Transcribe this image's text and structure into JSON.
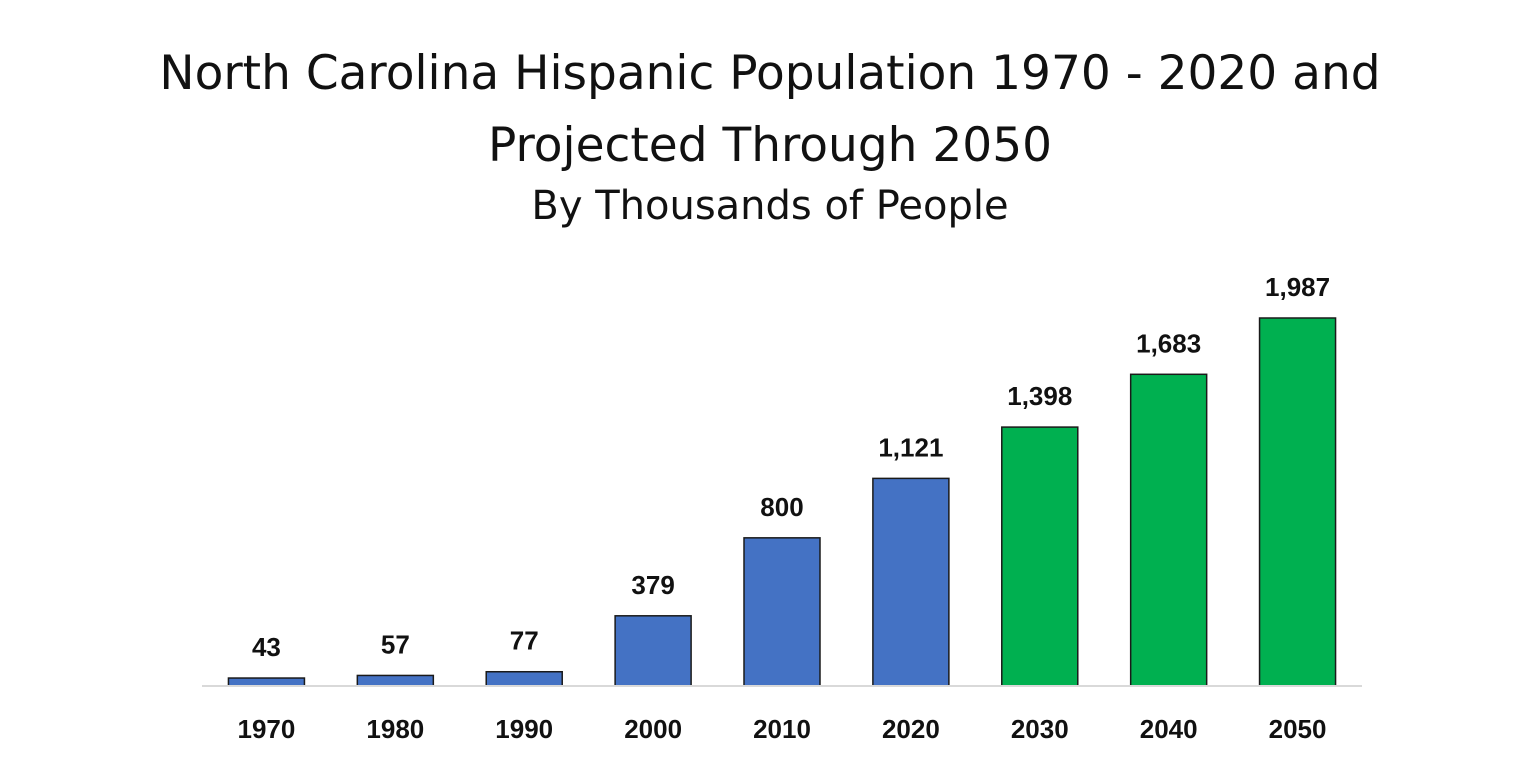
{
  "chart_data": {
    "type": "bar",
    "title": "North Carolina Hispanic Population 1970 - 2020 and Projected Through 2050",
    "title_lines": [
      "North Carolina Hispanic Population 1970 - 2020 and",
      "Projected Through 2050"
    ],
    "subtitle": "By Thousands of People",
    "xlabel": "",
    "ylabel": "",
    "categories": [
      "1970",
      "1980",
      "1990",
      "2000",
      "2010",
      "2020",
      "2030",
      "2040",
      "2050"
    ],
    "values": [
      43,
      57,
      77,
      379,
      800,
      1121,
      1398,
      1683,
      1987
    ],
    "value_labels": [
      "43",
      "57",
      "77",
      "379",
      "800",
      "1,121",
      "1,398",
      "1,683",
      "1,987"
    ],
    "bar_colors": [
      "#4472C4",
      "#4472C4",
      "#4472C4",
      "#4472C4",
      "#4472C4",
      "#4472C4",
      "#00B050",
      "#00B050",
      "#00B050"
    ],
    "ylim": [
      0,
      2000
    ],
    "grid": false,
    "legend": "none"
  }
}
